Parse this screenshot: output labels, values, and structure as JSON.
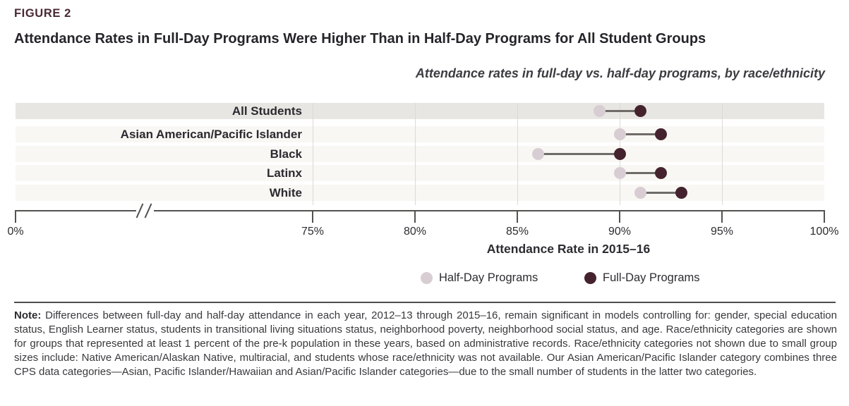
{
  "figure_label": "FIGURE 2",
  "title": "Attendance Rates in Full-Day Programs Were Higher Than in Half-Day Programs for All Student Groups",
  "chart_data": {
    "type": "dumbbell",
    "subtitle": "Attendance rates in full-day vs. half-day programs, by race/ethnicity",
    "categories": [
      "All Students",
      "Asian American/Pacific Islander",
      "Black",
      "Latinx",
      "White"
    ],
    "series": [
      {
        "name": "Half-Day Programs",
        "color": "#d8cdd3",
        "values": [
          89,
          90,
          86,
          90,
          91
        ]
      },
      {
        "name": "Full-Day Programs",
        "color": "#44232f",
        "values": [
          91,
          92,
          90,
          92,
          93
        ]
      }
    ],
    "xlabel": "Attendance Rate in 2015–16",
    "x_ticks": [
      "0%",
      "75%",
      "80%",
      "85%",
      "90%",
      "95%",
      "100%"
    ],
    "x_tick_values": [
      0,
      75,
      80,
      85,
      90,
      95,
      100
    ],
    "axis_break": true,
    "xlim_plot": [
      75,
      100
    ],
    "grid": true,
    "legend_position": "bottom",
    "row_band_colors": {
      "first": "#e8e6e2",
      "rest": "#f8f7f4"
    },
    "connector_color": "#6f6b69"
  },
  "note": {
    "label": "Note:",
    "text": " Differences between full-day and half-day attendance in each year, 2012–13 through 2015–16, remain significant in models controlling for: gender, special education status, English Learner status, students in transitional living situations status, neighborhood poverty, neighborhood social status, and age. Race/ethnicity categories are shown for groups that represented at least 1 percent of the pre-k population in these years, based on administrative records. Race/ethnicity categories not shown due to small group sizes include: Native American/Alaskan Native, multiracial, and students whose race/ethnicity was not available. Our Asian American/Pacific Islander category combines three CPS data categories—Asian, Pacific Islander/Hawaiian and Asian/Pacific Islander categories—due to the small number of students in the latter two categories."
  }
}
